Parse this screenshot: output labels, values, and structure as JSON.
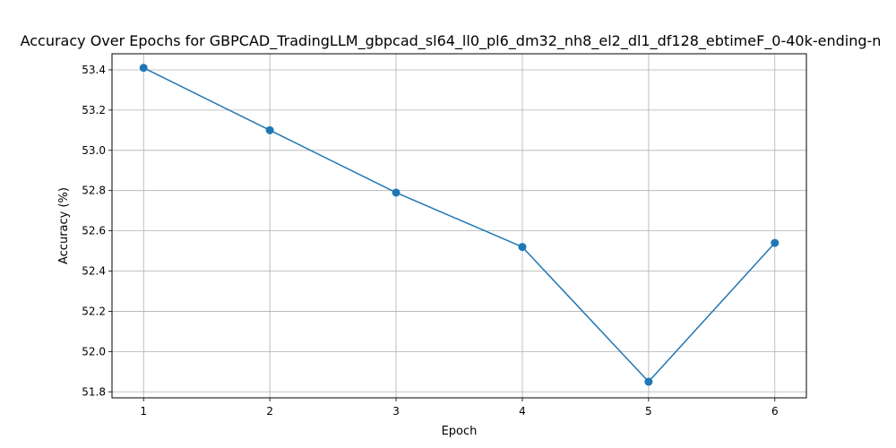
{
  "chart_data": {
    "type": "line",
    "title": "Accuracy Over Epochs for GBPCAD_TradingLLM_gbpcad_sl64_ll0_pl6_dm32_nh8_el2_dl1_df128_ebtimeF_0-40k-ending-n",
    "xlabel": "Epoch",
    "ylabel": "Accuracy (%)",
    "x": [
      1,
      2,
      3,
      4,
      5,
      6
    ],
    "x_ticks": [
      1,
      2,
      3,
      4,
      5,
      6
    ],
    "xlim": [
      0.75,
      6.25
    ],
    "y_ticks": [
      51.8,
      52.0,
      52.2,
      52.4,
      52.6,
      52.8,
      53.0,
      53.2,
      53.4
    ],
    "ylim": [
      51.77,
      53.48
    ],
    "grid": true,
    "series": [
      {
        "name": "",
        "values": [
          53.41,
          53.1,
          52.79,
          52.52,
          51.85,
          52.54
        ],
        "color": "#1f77b4",
        "marker": "circle"
      }
    ]
  }
}
